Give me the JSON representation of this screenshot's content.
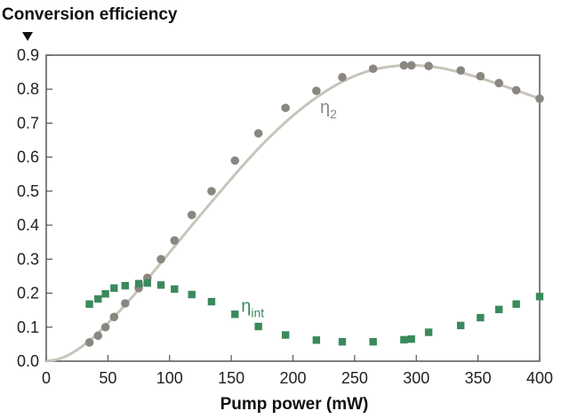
{
  "chart_data": {
    "type": "scatter",
    "ylabel": "Conversion efficiency",
    "xlabel": "Pump power (mW)",
    "xlim": [
      0,
      400
    ],
    "ylim": [
      0,
      0.9
    ],
    "x_ticks": [
      0,
      50,
      100,
      150,
      200,
      250,
      300,
      350,
      400
    ],
    "y_ticks": [
      0.0,
      0.1,
      0.2,
      0.3,
      0.4,
      0.5,
      0.6,
      0.7,
      0.8,
      0.9
    ],
    "x_tick_labels": [
      "0",
      "50",
      "100",
      "150",
      "200",
      "250",
      "300",
      "350",
      "400"
    ],
    "y_tick_labels": [
      "0.0",
      "0.1",
      "0.2",
      "0.3",
      "0.4",
      "0.5",
      "0.6",
      "0.7",
      "0.8",
      "0.9"
    ],
    "grid": false,
    "series": [
      {
        "name": "η2",
        "label_main": "η",
        "label_sub": "2",
        "label_at": [
          222,
          0.73
        ],
        "marker": "circle",
        "color": "#8a8782",
        "fit_color": "#c8c4bb",
        "x": [
          35,
          42,
          48,
          55,
          64,
          75,
          82,
          93,
          104,
          118,
          134,
          153,
          172,
          194,
          219,
          240,
          265,
          290,
          296,
          310,
          336,
          352,
          367,
          381,
          400
        ],
        "y": [
          0.055,
          0.075,
          0.1,
          0.13,
          0.17,
          0.215,
          0.245,
          0.3,
          0.355,
          0.43,
          0.5,
          0.59,
          0.67,
          0.745,
          0.795,
          0.835,
          0.86,
          0.87,
          0.87,
          0.868,
          0.855,
          0.838,
          0.818,
          0.797,
          0.772
        ],
        "fit_x": [
          0,
          10,
          20,
          30,
          40,
          50,
          60,
          70,
          80,
          90,
          100,
          120,
          140,
          160,
          180,
          200,
          220,
          240,
          260,
          280,
          300,
          320,
          340,
          360,
          380,
          400
        ],
        "fit_y": [
          0.0,
          0.006,
          0.022,
          0.046,
          0.076,
          0.112,
          0.15,
          0.19,
          0.232,
          0.276,
          0.32,
          0.408,
          0.494,
          0.578,
          0.655,
          0.722,
          0.778,
          0.822,
          0.852,
          0.867,
          0.87,
          0.862,
          0.845,
          0.823,
          0.798,
          0.772
        ]
      },
      {
        "name": "ηint",
        "label_main": "η",
        "label_sub": "int",
        "label_at": [
          158,
          0.145
        ],
        "marker": "square",
        "color": "#3a8a5c",
        "x": [
          35,
          42,
          48,
          55,
          64,
          75,
          82,
          93,
          104,
          118,
          134,
          153,
          172,
          194,
          219,
          240,
          265,
          290,
          296,
          310,
          336,
          352,
          367,
          381,
          400
        ],
        "y": [
          0.168,
          0.183,
          0.198,
          0.215,
          0.222,
          0.228,
          0.23,
          0.224,
          0.212,
          0.196,
          0.175,
          0.138,
          0.102,
          0.077,
          0.062,
          0.057,
          0.057,
          0.063,
          0.065,
          0.085,
          0.105,
          0.128,
          0.152,
          0.168,
          0.19
        ]
      }
    ]
  }
}
